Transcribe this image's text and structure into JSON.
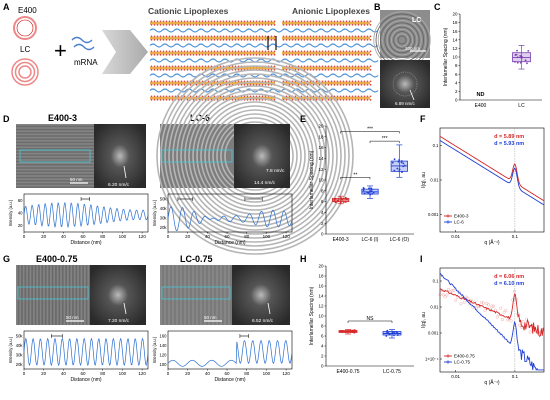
{
  "panel_letters": {
    "A": "A",
    "B": "B",
    "C": "C",
    "D": "D",
    "E": "E",
    "F": "F",
    "G": "G",
    "H": "H",
    "I": "I"
  },
  "panel_a": {
    "e400": "E400",
    "lc": "LC",
    "plus": "+",
    "mrna": "mRNA",
    "cationic": "Cationic Lipoplexes",
    "anionic": "Anionic Lipoplexes"
  },
  "panel_b": {
    "label": "LC",
    "scale": "200 nm",
    "fft": "6.89 nm/c"
  },
  "panel_c": {
    "chart_data": {
      "type": "box",
      "categories": [
        "E400",
        "LC"
      ],
      "ylabel": "Interlamellar Spacing (nm)",
      "ylim": [
        0,
        20
      ],
      "yticks": [
        0,
        2,
        4,
        6,
        8,
        10,
        12,
        14,
        16,
        18,
        20
      ],
      "annotation": "ND",
      "series": [
        {
          "values": [
            null,
            {
              "min": 7.2,
              "q1": 8.9,
              "median": 9.9,
              "q3": 11.0,
              "max": 12.7
            }
          ]
        }
      ]
    }
  },
  "panel_d": {
    "left_title": "E400-3",
    "right_title": "LC-6",
    "left_scale": "50 nm",
    "left_fft": "6.20 nm/c",
    "right_fft_a": "7.8 nm/c",
    "right_fft_b": "14.4 nm/c",
    "ylabel": "Intensity (a.u.)",
    "xlabel": "Distance (nm)",
    "xticks": [
      "0",
      "20",
      "40",
      "60",
      "80",
      "100",
      "120"
    ],
    "left_yticks": [
      "20",
      "40",
      "60"
    ],
    "right_yticks": [
      "20k",
      "30k",
      "40k",
      "50k"
    ]
  },
  "panel_e": {
    "chart_data": {
      "type": "box",
      "categories": [
        "E400-3",
        "LC-6 (I)",
        "LC-6 (O)"
      ],
      "ylabel": "Interlamellar Spacing (nm)",
      "ylim": [
        0,
        20
      ],
      "yticks": [
        0,
        2,
        4,
        6,
        8,
        10,
        12,
        14,
        16,
        18,
        20
      ],
      "series": [
        {
          "values": [
            {
              "min": 5.6,
              "q1": 6.0,
              "median": 6.3,
              "q3": 6.6,
              "max": 7.0
            },
            {
              "min": 6.6,
              "q1": 7.4,
              "median": 7.8,
              "q3": 8.3,
              "max": 8.9
            },
            {
              "min": 10.5,
              "q1": 11.6,
              "median": 12.6,
              "q3": 13.5,
              "max": 16.5
            }
          ]
        }
      ],
      "significance": [
        {
          "from": 0,
          "to": 1,
          "label": "**"
        },
        {
          "from": 1,
          "to": 2,
          "label": "***"
        },
        {
          "from": 0,
          "to": 2,
          "label": "***"
        }
      ]
    }
  },
  "panel_f": {
    "chart_data": {
      "type": "line",
      "xlabel": "q (Å⁻¹)",
      "ylabel": "I(q), au",
      "xscale": "log",
      "yscale": "log",
      "xticks": [
        "0.01",
        "0.1"
      ],
      "yticks": [
        "0.001",
        "0.01",
        "0.1"
      ],
      "annotations": [
        "d = 5.89 nm",
        "d = 5.93 nm"
      ],
      "series": [
        {
          "name": "E400-3",
          "color": "#d62728"
        },
        {
          "name": "LC-6",
          "color": "#1f3fd6"
        }
      ]
    }
  },
  "panel_g": {
    "left_title": "E400-0.75",
    "right_title": "LC-0.75",
    "left_scale": "50 nm",
    "left_fft": "7.20 nm/c",
    "right_scale": "50 nm",
    "right_fft": "6.52 nm/c",
    "ylabel": "Intensity (a.u.)",
    "xlabel": "Distance (nm)",
    "xticks": [
      "0",
      "20",
      "40",
      "60",
      "80",
      "100",
      "120"
    ],
    "left_yticks": [
      "20k",
      "30k",
      "40k",
      "50k"
    ],
    "right_yticks": [
      "100",
      "120",
      "140",
      "160"
    ]
  },
  "panel_h": {
    "chart_data": {
      "type": "box",
      "categories": [
        "E400-0.75",
        "LC-0.75"
      ],
      "ylabel": "Interlamellar Spacing (nm)",
      "ylim": [
        0,
        20
      ],
      "yticks": [
        0,
        2,
        4,
        6,
        8,
        10,
        12,
        14,
        16,
        18,
        20
      ],
      "series": [
        {
          "values": [
            {
              "min": 6.4,
              "q1": 6.7,
              "median": 6.9,
              "q3": 7.1,
              "max": 7.3
            },
            {
              "min": 5.6,
              "q1": 6.2,
              "median": 6.5,
              "q3": 6.9,
              "max": 7.3
            }
          ]
        }
      ],
      "significance": [
        {
          "from": 0,
          "to": 1,
          "label": "NS"
        }
      ]
    }
  },
  "panel_i": {
    "chart_data": {
      "type": "line",
      "xlabel": "q (Å⁻¹)",
      "ylabel": "I(q), au",
      "xscale": "log",
      "yscale": "log",
      "xticks": [
        "0.01",
        "0.1"
      ],
      "yticks": [
        "1×10⁻⁴",
        "0.001",
        "0.01",
        "0.1"
      ],
      "annotations": [
        "d = 6.06 nm",
        "d = 6.10 nm"
      ],
      "series": [
        {
          "name": "E400-0.75",
          "color": "#d62728"
        },
        {
          "name": "LC-0.75",
          "color": "#1f3fd6"
        }
      ]
    }
  },
  "colors": {
    "red": "#d62728",
    "blue": "#1f3fd6",
    "purple": "#7b3fb5",
    "green": "#2ca02c",
    "orange": "#e0752f"
  }
}
